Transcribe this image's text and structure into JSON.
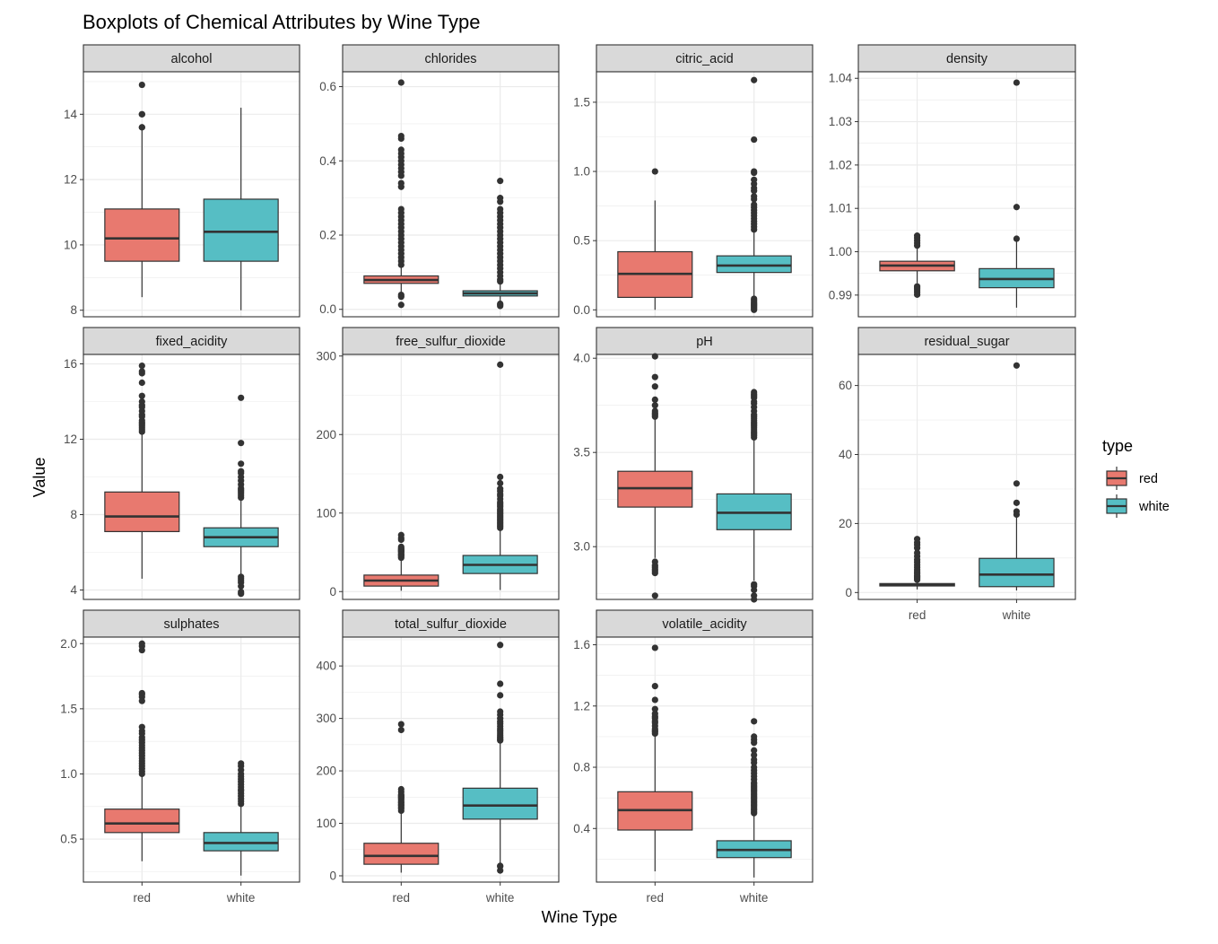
{
  "chart_data": {
    "type": "boxplot",
    "title": "Boxplots of Chemical Attributes by Wine Type",
    "xlabel": "Wine Type",
    "ylabel": "Value",
    "categories": [
      "red",
      "white"
    ],
    "legend": {
      "title": "type",
      "position": "right",
      "entries": [
        {
          "label": "red",
          "color": "#E8796F"
        },
        {
          "label": "white",
          "color": "#56BEC4"
        }
      ]
    },
    "colors": {
      "red": "#E8796F",
      "white": "#56BEC4",
      "strip_bg": "#D9D9D9",
      "grid": "#EBEBEB",
      "line": "#333333"
    },
    "facets": [
      {
        "name": "alcohol",
        "ylim": [
          7.8,
          15.3
        ],
        "yticks": [
          8,
          10,
          12,
          14
        ],
        "boxes": [
          {
            "type": "red",
            "min": 8.4,
            "q1": 9.5,
            "median": 10.2,
            "q3": 11.1,
            "max": 13.5,
            "outliers": [
              13.6,
              13.6,
              14.0,
              14.0,
              14.9
            ]
          },
          {
            "type": "white",
            "min": 8.0,
            "q1": 9.5,
            "median": 10.4,
            "q3": 11.4,
            "max": 14.2,
            "outliers": []
          }
        ]
      },
      {
        "name": "chlorides",
        "ylim": [
          -0.02,
          0.64
        ],
        "yticks": [
          0.0,
          0.2,
          0.4,
          0.6
        ],
        "tick_labels": [
          "0.0",
          "0.2",
          "0.4",
          "0.6"
        ],
        "boxes": [
          {
            "type": "red",
            "min": 0.042,
            "q1": 0.07,
            "median": 0.079,
            "q3": 0.09,
            "max": 0.119,
            "outliers": [
              0.012,
              0.034,
              0.039,
              0.12,
              0.13,
              0.14,
              0.15,
              0.16,
              0.17,
              0.18,
              0.19,
              0.2,
              0.21,
              0.22,
              0.23,
              0.24,
              0.25,
              0.26,
              0.27,
              0.33,
              0.34,
              0.36,
              0.37,
              0.38,
              0.39,
              0.4,
              0.41,
              0.42,
              0.43,
              0.46,
              0.467,
              0.611
            ]
          },
          {
            "type": "white",
            "min": 0.018,
            "q1": 0.036,
            "median": 0.043,
            "q3": 0.05,
            "max": 0.07,
            "outliers": [
              0.009,
              0.012,
              0.015,
              0.075,
              0.08,
              0.09,
              0.1,
              0.11,
              0.12,
              0.13,
              0.14,
              0.15,
              0.16,
              0.17,
              0.18,
              0.19,
              0.2,
              0.21,
              0.22,
              0.23,
              0.24,
              0.25,
              0.26,
              0.27,
              0.29,
              0.3,
              0.346
            ]
          }
        ]
      },
      {
        "name": "citric_acid",
        "ylim": [
          -0.05,
          1.72
        ],
        "yticks": [
          0.0,
          0.5,
          1.0,
          1.5
        ],
        "tick_labels": [
          "0.0",
          "0.5",
          "1.0",
          "1.5"
        ],
        "boxes": [
          {
            "type": "red",
            "min": 0.0,
            "q1": 0.09,
            "median": 0.26,
            "q3": 0.42,
            "max": 0.79,
            "outliers": [
              1.0
            ]
          },
          {
            "type": "white",
            "min": 0.09,
            "q1": 0.27,
            "median": 0.32,
            "q3": 0.39,
            "max": 0.56,
            "outliers": [
              0.0,
              0.01,
              0.02,
              0.03,
              0.04,
              0.05,
              0.06,
              0.07,
              0.08,
              0.58,
              0.6,
              0.62,
              0.64,
              0.66,
              0.68,
              0.7,
              0.72,
              0.74,
              0.76,
              0.8,
              0.82,
              0.86,
              0.88,
              0.91,
              0.94,
              0.99,
              1.0,
              1.23,
              1.66
            ]
          }
        ]
      },
      {
        "name": "density",
        "ylim": [
          0.985,
          1.0415
        ],
        "yticks": [
          0.99,
          1.0,
          1.01,
          1.02,
          1.03,
          1.04
        ],
        "tick_labels": [
          "0.99",
          "1.00",
          "1.01",
          "1.02",
          "1.03",
          "1.04"
        ],
        "boxes": [
          {
            "type": "red",
            "min": 0.9927,
            "q1": 0.9956,
            "median": 0.9968,
            "q3": 0.9978,
            "max": 1.001,
            "outliers": [
              0.9901,
              0.9907,
              0.9912,
              0.9916,
              0.992,
              1.0014,
              1.002,
              1.0026,
              1.0032,
              1.0037
            ]
          },
          {
            "type": "white",
            "min": 0.9871,
            "q1": 0.9917,
            "median": 0.9937,
            "q3": 0.9961,
            "max": 1.0024,
            "outliers": [
              1.003,
              1.0103,
              1.039
            ]
          }
        ]
      },
      {
        "name": "fixed_acidity",
        "ylim": [
          3.5,
          16.5
        ],
        "yticks": [
          4,
          8,
          12,
          16
        ],
        "boxes": [
          {
            "type": "red",
            "min": 4.6,
            "q1": 7.1,
            "median": 7.9,
            "q3": 9.2,
            "max": 12.3,
            "outliers": [
              12.4,
              12.5,
              12.6,
              12.7,
              12.8,
              12.9,
              13.0,
              13.2,
              13.3,
              13.5,
              13.7,
              13.8,
              14.0,
              14.3,
              15.0,
              15.5,
              15.6,
              15.9
            ]
          },
          {
            "type": "white",
            "min": 4.8,
            "q1": 6.3,
            "median": 6.8,
            "q3": 7.3,
            "max": 8.8,
            "outliers": [
              3.8,
              3.9,
              4.2,
              4.4,
              4.5,
              4.6,
              4.7,
              8.9,
              9.0,
              9.1,
              9.2,
              9.3,
              9.4,
              9.6,
              9.8,
              10.0,
              10.2,
              10.3,
              10.7,
              11.8,
              14.2
            ]
          }
        ]
      },
      {
        "name": "free_sulfur_dioxide",
        "ylim": [
          -10,
          302
        ],
        "yticks": [
          0,
          100,
          200,
          300
        ],
        "boxes": [
          {
            "type": "red",
            "min": 1,
            "q1": 7,
            "median": 14,
            "q3": 21,
            "max": 42,
            "outliers": [
              43,
              45,
              46,
              47,
              48,
              50,
              51,
              52,
              53,
              54,
              55,
              57,
              66,
              68,
              72
            ]
          },
          {
            "type": "white",
            "min": 2,
            "q1": 23,
            "median": 34,
            "q3": 46,
            "max": 80,
            "outliers": [
              81,
              83,
              85,
              87,
              89,
              91,
              93,
              95,
              97,
              99,
              101,
              103,
              105,
              108,
              110,
              112,
              114,
              118,
              122,
              124,
              128,
              131,
              138,
              146,
              289
            ]
          }
        ]
      },
      {
        "name": "pH",
        "ylim": [
          2.72,
          4.02
        ],
        "yticks": [
          3.0,
          3.5,
          4.0
        ],
        "tick_labels": [
          "3.0",
          "3.5",
          "4.0"
        ],
        "boxes": [
          {
            "type": "red",
            "min": 2.94,
            "q1": 3.21,
            "median": 3.31,
            "q3": 3.4,
            "max": 3.68,
            "outliers": [
              2.74,
              2.86,
              2.87,
              2.88,
              2.89,
              2.9,
              2.92,
              3.69,
              3.7,
              3.71,
              3.72,
              3.75,
              3.78,
              3.85,
              3.9,
              4.01
            ]
          },
          {
            "type": "white",
            "min": 2.82,
            "q1": 3.09,
            "median": 3.18,
            "q3": 3.28,
            "max": 3.57,
            "outliers": [
              2.72,
              2.74,
              2.77,
              2.79,
              2.8,
              3.58,
              3.59,
              3.6,
              3.61,
              3.62,
              3.63,
              3.64,
              3.65,
              3.66,
              3.67,
              3.68,
              3.69,
              3.7,
              3.72,
              3.74,
              3.76,
              3.77,
              3.79,
              3.8,
              3.81,
              3.82
            ]
          }
        ]
      },
      {
        "name": "residual_sugar",
        "ylim": [
          -2,
          69
        ],
        "yticks": [
          0,
          20,
          40,
          60
        ],
        "boxes": [
          {
            "type": "red",
            "min": 0.9,
            "q1": 1.9,
            "median": 2.2,
            "q3": 2.6,
            "max": 3.6,
            "outliers": [
              3.7,
              4.0,
              4.3,
              4.6,
              5.0,
              5.5,
              6.0,
              6.6,
              7.3,
              8.0,
              8.8,
              9.5,
              10.5,
              11.5,
              12.9,
              13.8,
              14.5,
              15.5
            ]
          },
          {
            "type": "white",
            "min": 0.6,
            "q1": 1.7,
            "median": 5.2,
            "q3": 9.9,
            "max": 22.0,
            "outliers": [
              22.6,
              23.5,
              26.0,
              31.6,
              65.8
            ]
          }
        ]
      },
      {
        "name": "sulphates",
        "ylim": [
          0.17,
          2.05
        ],
        "yticks": [
          0.5,
          1.0,
          1.5,
          2.0
        ],
        "tick_labels": [
          "0.5",
          "1.0",
          "1.5",
          "2.0"
        ],
        "boxes": [
          {
            "type": "red",
            "min": 0.33,
            "q1": 0.55,
            "median": 0.62,
            "q3": 0.73,
            "max": 0.99,
            "outliers": [
              1.0,
              1.02,
              1.04,
              1.06,
              1.08,
              1.1,
              1.12,
              1.14,
              1.16,
              1.18,
              1.2,
              1.22,
              1.24,
              1.26,
              1.28,
              1.31,
              1.33,
              1.36,
              1.56,
              1.59,
              1.61,
              1.62,
              1.95,
              1.98,
              2.0
            ]
          },
          {
            "type": "white",
            "min": 0.22,
            "q1": 0.41,
            "median": 0.47,
            "q3": 0.55,
            "max": 0.76,
            "outliers": [
              0.77,
              0.79,
              0.81,
              0.83,
              0.85,
              0.87,
              0.88,
              0.9,
              0.92,
              0.94,
              0.96,
              0.98,
              1.0,
              1.03,
              1.06,
              1.08
            ]
          }
        ]
      },
      {
        "name": "total_sulfur_dioxide",
        "ylim": [
          -12,
          455
        ],
        "yticks": [
          0,
          100,
          200,
          300,
          400
        ],
        "boxes": [
          {
            "type": "red",
            "min": 6,
            "q1": 22,
            "median": 38,
            "q3": 62,
            "max": 122,
            "outliers": [
              124,
              128,
              131,
              134,
              136,
              139,
              141,
              144,
              147,
              149,
              151,
              153,
              155,
              160,
              165,
              278,
              289
            ]
          },
          {
            "type": "white",
            "min": 9,
            "q1": 108,
            "median": 134,
            "q3": 167,
            "max": 256,
            "outliers": [
              10,
              18,
              19,
              258,
              260,
              262,
              265,
              268,
              272,
              276,
              280,
              285,
              290,
              294,
              300,
              307,
              313,
              344,
              366,
              440
            ]
          }
        ]
      },
      {
        "name": "volatile_acidity",
        "ylim": [
          0.05,
          1.65
        ],
        "yticks": [
          0.4,
          0.8,
          1.2,
          1.6
        ],
        "tick_labels": [
          "0.4",
          "0.8",
          "1.2",
          "1.6"
        ],
        "boxes": [
          {
            "type": "red",
            "min": 0.12,
            "q1": 0.39,
            "median": 0.52,
            "q3": 0.64,
            "max": 1.01,
            "outliers": [
              1.02,
              1.03,
              1.04,
              1.05,
              1.07,
              1.09,
              1.1,
              1.12,
              1.13,
              1.15,
              1.18,
              1.24,
              1.33,
              1.58
            ]
          },
          {
            "type": "white",
            "min": 0.08,
            "q1": 0.21,
            "median": 0.26,
            "q3": 0.32,
            "max": 0.49,
            "outliers": [
              0.5,
              0.51,
              0.52,
              0.53,
              0.54,
              0.55,
              0.56,
              0.57,
              0.58,
              0.59,
              0.6,
              0.61,
              0.62,
              0.63,
              0.64,
              0.65,
              0.66,
              0.67,
              0.68,
              0.69,
              0.7,
              0.72,
              0.74,
              0.76,
              0.78,
              0.8,
              0.83,
              0.85,
              0.88,
              0.91,
              0.96,
              0.98,
              1.0,
              1.1
            ]
          }
        ]
      }
    ]
  }
}
